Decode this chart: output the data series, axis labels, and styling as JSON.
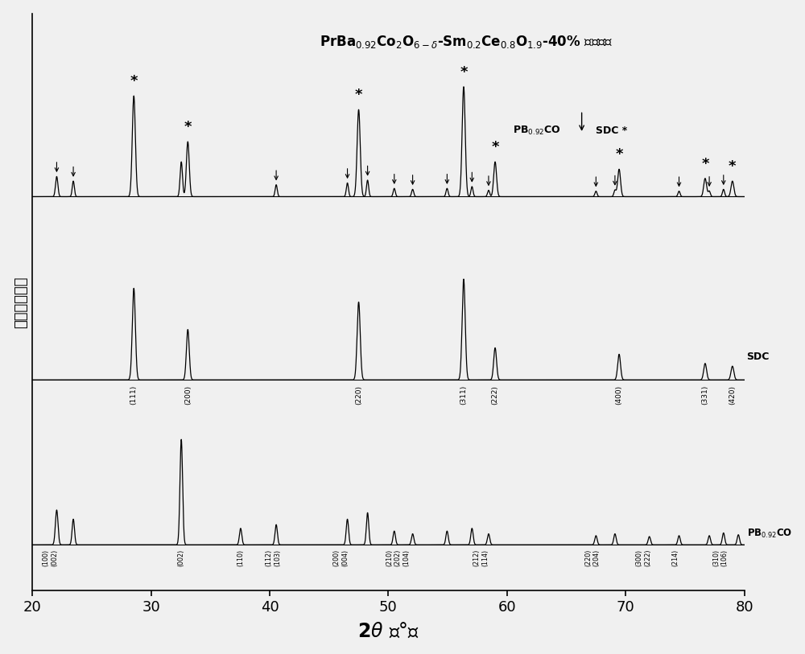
{
  "xmin": 20,
  "xmax": 80,
  "background_color": "#f0f0f0",
  "y_pb_base": 0.0,
  "y_sdc_base": 1.8,
  "y_comp_base": 3.8,
  "ylim_min": -0.5,
  "ylim_max": 5.8,
  "sdc_peaks_pos": [
    28.55,
    33.1,
    47.5,
    56.35,
    59.0,
    69.45,
    76.7,
    79.0
  ],
  "sdc_peaks_h": [
    1.0,
    0.55,
    0.85,
    1.1,
    0.35,
    0.28,
    0.18,
    0.15
  ],
  "sdc_peaks_w": [
    0.13,
    0.12,
    0.13,
    0.13,
    0.12,
    0.12,
    0.12,
    0.12
  ],
  "sdc_labels": [
    "(111)",
    "(200)",
    "(220)",
    "(311)",
    "(222)",
    "(400)",
    "(331)",
    "(420)"
  ],
  "pb_peaks_pos": [
    22.05,
    23.45,
    32.55,
    37.55,
    40.55,
    46.55,
    48.25,
    50.5,
    52.05,
    54.95,
    57.05,
    58.45,
    67.5,
    69.1,
    72.0,
    74.5,
    77.05,
    78.25,
    79.5
  ],
  "pb_peaks_h": [
    0.38,
    0.28,
    1.15,
    0.18,
    0.22,
    0.28,
    0.35,
    0.15,
    0.12,
    0.15,
    0.18,
    0.12,
    0.1,
    0.12,
    0.09,
    0.1,
    0.1,
    0.13,
    0.11
  ],
  "pb_peaks_w": [
    0.11,
    0.1,
    0.11,
    0.1,
    0.1,
    0.1,
    0.1,
    0.1,
    0.1,
    0.1,
    0.1,
    0.1,
    0.1,
    0.1,
    0.1,
    0.1,
    0.1,
    0.1,
    0.1
  ],
  "comp_sdc_peaks_pos": [
    28.55,
    33.1,
    47.5,
    56.35,
    59.0,
    69.45,
    76.7,
    79.0
  ],
  "comp_sdc_peaks_h": [
    1.1,
    0.6,
    0.95,
    1.2,
    0.38,
    0.3,
    0.2,
    0.17
  ],
  "comp_sdc_peaks_w": [
    0.13,
    0.12,
    0.13,
    0.13,
    0.12,
    0.12,
    0.12,
    0.12
  ],
  "comp_pb_peaks_pos": [
    22.05,
    23.45,
    32.55,
    40.55,
    46.55,
    48.25,
    50.5,
    52.05,
    54.95,
    57.05,
    58.45,
    67.5,
    69.1,
    74.5,
    77.05,
    78.25
  ],
  "comp_pb_peaks_h": [
    0.22,
    0.17,
    0.38,
    0.13,
    0.15,
    0.18,
    0.09,
    0.08,
    0.09,
    0.11,
    0.07,
    0.06,
    0.07,
    0.06,
    0.06,
    0.08
  ],
  "comp_pb_peaks_w": [
    0.1,
    0.09,
    0.1,
    0.09,
    0.09,
    0.09,
    0.09,
    0.09,
    0.09,
    0.09,
    0.09,
    0.09,
    0.09,
    0.09,
    0.09,
    0.09
  ]
}
